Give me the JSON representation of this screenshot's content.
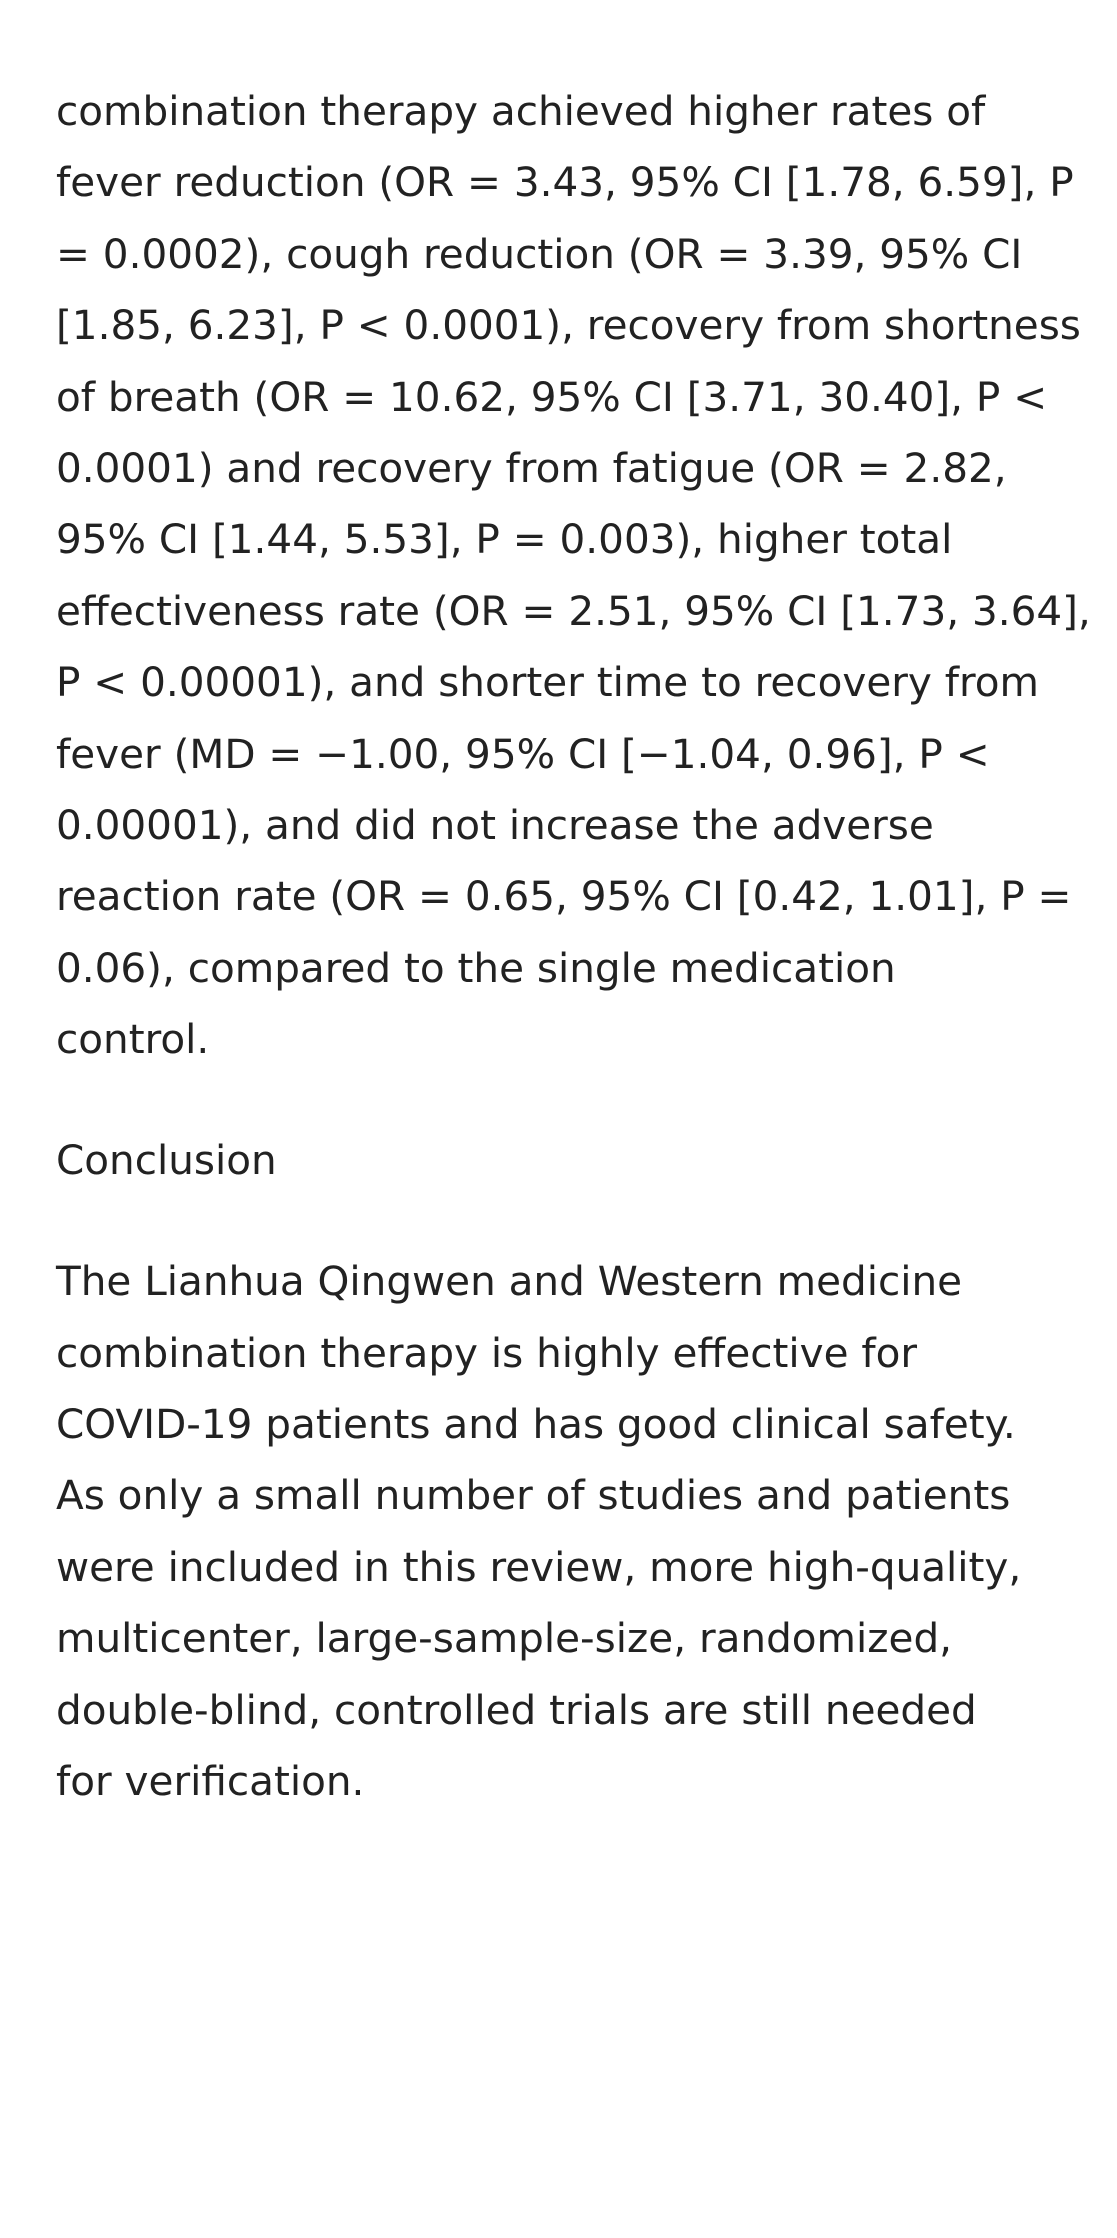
{
  "results": {
    "text": "combination therapy achieved higher rates of\nfever reduction (OR = 3.43, 95% CI [1.78, 6.59], P\n= 0.0002), cough reduction (OR = 3.39, 95% CI\n[1.85, 6.23], P < 0.0001), recovery from shortness\nof breath (OR = 10.62, 95% CI [3.71, 30.40], P <\n0.0001) and recovery from fatigue (OR = 2.82,\n95% CI [1.44, 5.53], P = 0.003), higher total\neffectiveness rate (OR = 2.51, 95% CI [1.73, 3.64],\nP < 0.00001), and shorter time to recovery from\nfever (MD = −1.00, 95% CI [−1.04, 0.96], P <\n0.00001), and did not increase the adverse\nreaction rate (OR = 0.65, 95% CI [0.42, 1.01], P =\n0.06), compared to the single medication\ncontrol."
  },
  "conclusion": {
    "heading": "Conclusion",
    "text": "The Lianhua Qingwen and Western medicine\ncombination therapy is highly effective for\nCOVID-19 patients and has good clinical safety.\nAs only a small number of studies and patients\nwere included in this review, more high-quality,\nmulticenter, large-sample-size, randomized,\ndouble-blind, controlled trials are still needed\nfor verification."
  }
}
